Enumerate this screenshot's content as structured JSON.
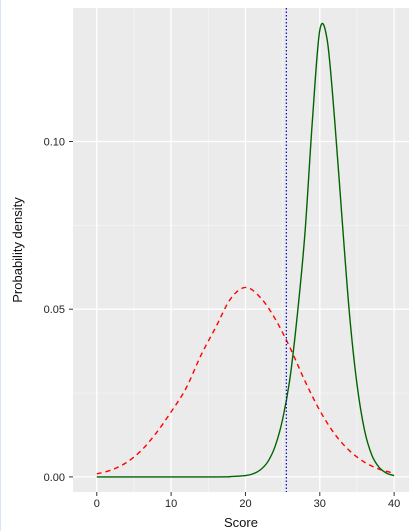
{
  "chart_data": {
    "type": "line",
    "title": "",
    "xlabel": "Score",
    "ylabel": "Probability density",
    "xlim": [
      -3.2,
      42
    ],
    "ylim": [
      -0.0045,
      0.1398
    ],
    "xticks": [
      0,
      10,
      20,
      30,
      40
    ],
    "xtick_labels": [
      "0",
      "10",
      "20",
      "30",
      "40"
    ],
    "yticks": [
      0.0,
      0.05,
      0.1
    ],
    "ytick_labels": [
      "0.00",
      "0.05",
      "0.10"
    ],
    "grid": true,
    "background": "#ebebeb",
    "series": [
      {
        "style": "dashed",
        "color": "#ff0000",
        "x": [
          0,
          2,
          4,
          6,
          8,
          10,
          12,
          14,
          16,
          18,
          20,
          22,
          24,
          26,
          28,
          30,
          32,
          34,
          36,
          38,
          40
        ],
        "y": [
          0.0009,
          0.0021,
          0.0043,
          0.0079,
          0.0131,
          0.0194,
          0.0264,
          0.0362,
          0.0446,
          0.0531,
          0.0565,
          0.0535,
          0.0471,
          0.0385,
          0.0286,
          0.0198,
          0.0128,
          0.0078,
          0.0044,
          0.0023,
          0.0011
        ]
      },
      {
        "style": "solid",
        "color": "#006400",
        "x": [
          0,
          16,
          18,
          20,
          21,
          22,
          23,
          24,
          25,
          26,
          27,
          28,
          29,
          30,
          31,
          32,
          33,
          34,
          35,
          36,
          37,
          38,
          39,
          40
        ],
        "y": [
          0.0,
          0.0,
          0.0001,
          0.0004,
          0.0009,
          0.0021,
          0.0045,
          0.0092,
          0.0172,
          0.0296,
          0.0488,
          0.0726,
          0.1061,
          0.1332,
          0.1302,
          0.1064,
          0.0768,
          0.0484,
          0.0277,
          0.0141,
          0.0065,
          0.0028,
          0.0011,
          0.0004
        ]
      }
    ],
    "vline": {
      "x": 25.5,
      "style": "dotted",
      "color": "#0000cd"
    }
  }
}
